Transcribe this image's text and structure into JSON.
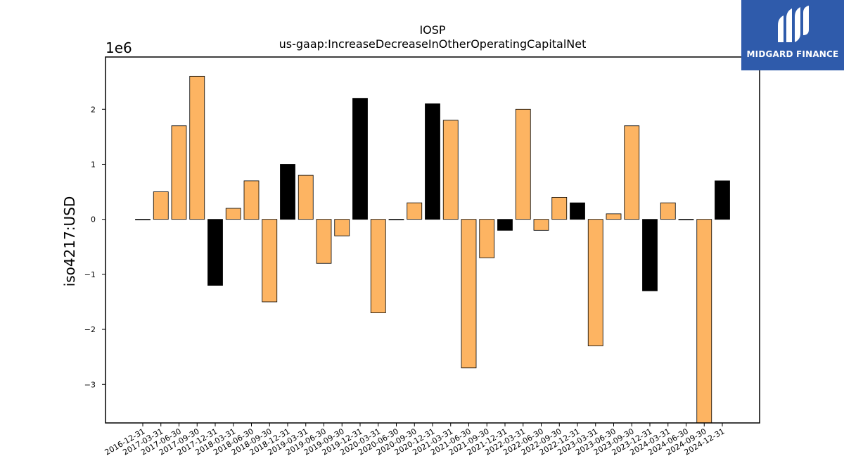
{
  "chart_data": {
    "type": "bar",
    "title": "IOSP",
    "subtitle": "us-gaap:IncreaseDecreaseInOtherOperatingCapitalNet",
    "ylabel": "iso4217:USD",
    "xlabel": "",
    "y_multiplier_label": "1e6",
    "ylim": [
      -3.7,
      2.95
    ],
    "yticks": [
      -3,
      -2,
      -1,
      0,
      1,
      2
    ],
    "ytick_labels": [
      "−3",
      "−2",
      "−1",
      "0",
      "1",
      "2"
    ],
    "grid": false,
    "categories": [
      "2016-12-31",
      "2017-03-31",
      "2017-06-30",
      "2017-09-30",
      "2017-12-31",
      "2018-03-31",
      "2018-06-30",
      "2018-09-30",
      "2018-12-31",
      "2019-03-31",
      "2019-06-30",
      "2019-09-30",
      "2019-12-31",
      "2020-03-31",
      "2020-06-30",
      "2020-09-30",
      "2020-12-31",
      "2021-03-31",
      "2021-06-30",
      "2021-09-30",
      "2021-12-31",
      "2022-03-31",
      "2022-06-30",
      "2022-09-30",
      "2022-12-31",
      "2023-03-31",
      "2023-06-30",
      "2023-09-30",
      "2023-12-31",
      "2024-03-31",
      "2024-06-30",
      "2024-09-30",
      "2024-12-31"
    ],
    "values": [
      0,
      0.5,
      1.7,
      2.6,
      -1.2,
      0.2,
      0.7,
      -1.5,
      1.0,
      0.8,
      -0.8,
      -0.3,
      2.2,
      -1.7,
      0,
      0.3,
      2.1,
      1.8,
      -2.7,
      -0.7,
      -0.2,
      2.0,
      -0.2,
      0.4,
      0.3,
      -2.3,
      0.1,
      1.7,
      -1.3,
      0.3,
      0,
      -3.7,
      0.7
    ],
    "highlighted": [
      false,
      false,
      false,
      false,
      true,
      false,
      false,
      false,
      true,
      false,
      false,
      false,
      true,
      false,
      false,
      false,
      true,
      false,
      false,
      false,
      true,
      false,
      false,
      false,
      true,
      false,
      false,
      false,
      true,
      false,
      false,
      false,
      true
    ],
    "colors": {
      "normal": "#fdb462",
      "highlight": "#000000",
      "edge": "#000000"
    }
  },
  "logo": {
    "text": "MIDGARD FINANCE",
    "background": "#2f5bab"
  }
}
